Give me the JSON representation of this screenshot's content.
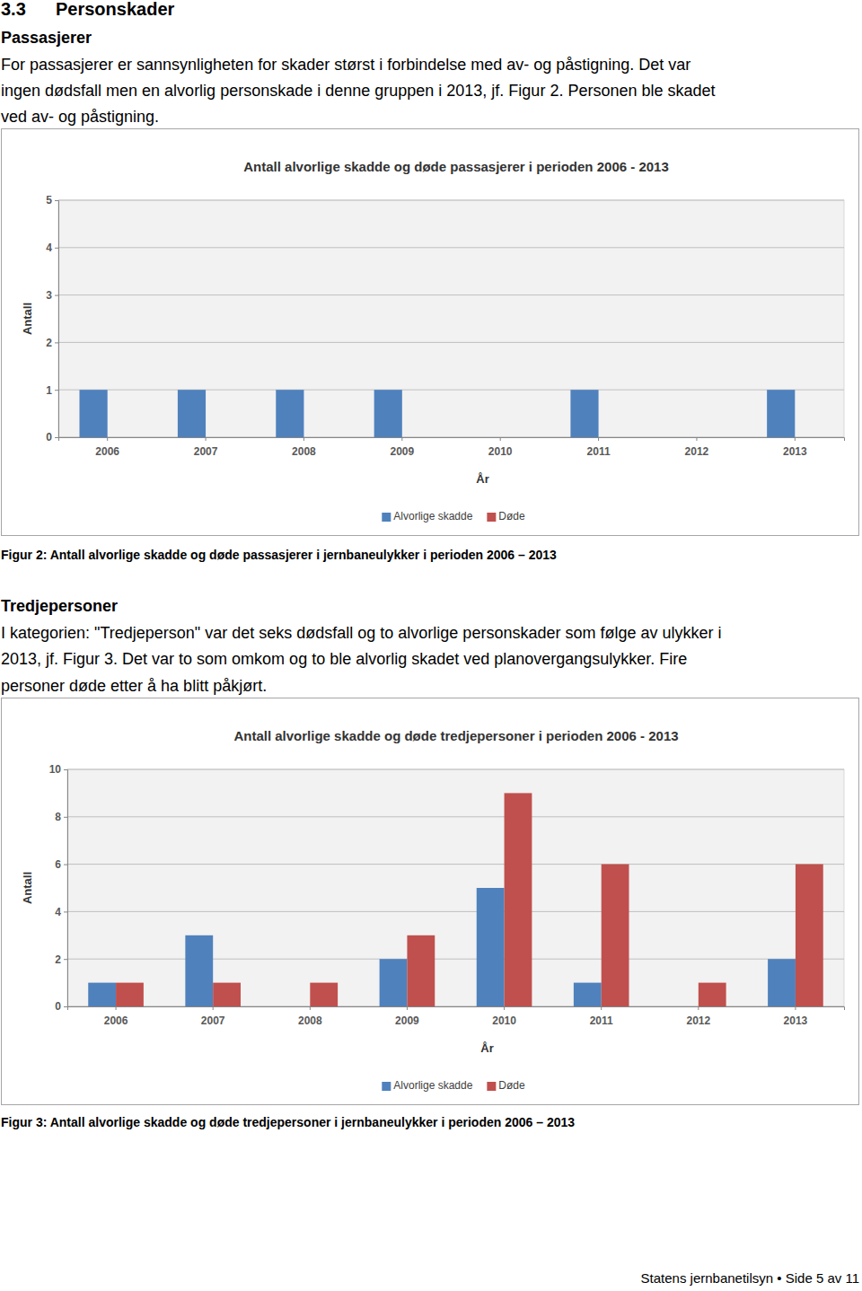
{
  "heading": {
    "number": "3.3",
    "title": "Personskader"
  },
  "sections": [
    {
      "title": "Passasjerer",
      "lines": [
        "For passasjerer er sannsynligheten for skader størst i forbindelse med av- og påstigning. Det var",
        "ingen dødsfall men en alvorlig personskade i denne gruppen i 2013, jf. Figur 2. Personen ble skadet",
        "ved av- og påstigning."
      ],
      "caption": "Figur 2: Antall alvorlige skadde og døde passasjerer i jernbaneulykker i perioden 2006 – 2013"
    },
    {
      "title": "Tredjepersoner",
      "lines": [
        "I kategorien: \"Tredjeperson\" var det seks dødsfall og to alvorlige personskader som følge av ulykker i",
        "2013, jf. Figur 3. Det var to som omkom og to ble alvorlig skadet ved planovergangsulykker. Fire",
        "personer døde etter å ha blitt påkjørt."
      ],
      "caption": "Figur 3: Antall alvorlige skadde og døde tredjepersoner i jernbaneulykker i perioden 2006 – 2013"
    }
  ],
  "footer": "Statens jernbanetilsyn • Side 5 av 11",
  "chart_data": [
    {
      "type": "bar",
      "title": "Antall alvorlige skadde og døde passasjerer i perioden 2006 - 2013",
      "x_label": "År",
      "y_label": "Antall",
      "categories": [
        "2006",
        "2007",
        "2008",
        "2009",
        "2010",
        "2011",
        "2012",
        "2013"
      ],
      "series": [
        {
          "name": "Alvorlige skadde",
          "color": "#4f81bd",
          "values": [
            1,
            1,
            1,
            1,
            0,
            1,
            0,
            1
          ]
        },
        {
          "name": "Døde",
          "color": "#c0504d",
          "values": [
            0,
            0,
            0,
            0,
            0,
            0,
            0,
            0
          ]
        }
      ],
      "ylim": [
        0,
        5
      ],
      "yticks": [
        0,
        1,
        2,
        3,
        4,
        5
      ],
      "grid": true,
      "legend": "bottom"
    },
    {
      "type": "bar",
      "title": "Antall alvorlige skadde og døde tredjepersoner i perioden 2006 - 2013",
      "x_label": "År",
      "y_label": "Antall",
      "categories": [
        "2006",
        "2007",
        "2008",
        "2009",
        "2010",
        "2011",
        "2012",
        "2013"
      ],
      "series": [
        {
          "name": "Alvorlige skadde",
          "color": "#4f81bd",
          "values": [
            1,
            3,
            0,
            2,
            5,
            1,
            0,
            2
          ]
        },
        {
          "name": "Døde",
          "color": "#c0504d",
          "values": [
            1,
            1,
            1,
            3,
            9,
            6,
            1,
            6
          ]
        }
      ],
      "ylim": [
        0,
        10
      ],
      "yticks": [
        0,
        2,
        4,
        6,
        8,
        10
      ],
      "grid": true,
      "legend": "bottom"
    }
  ]
}
